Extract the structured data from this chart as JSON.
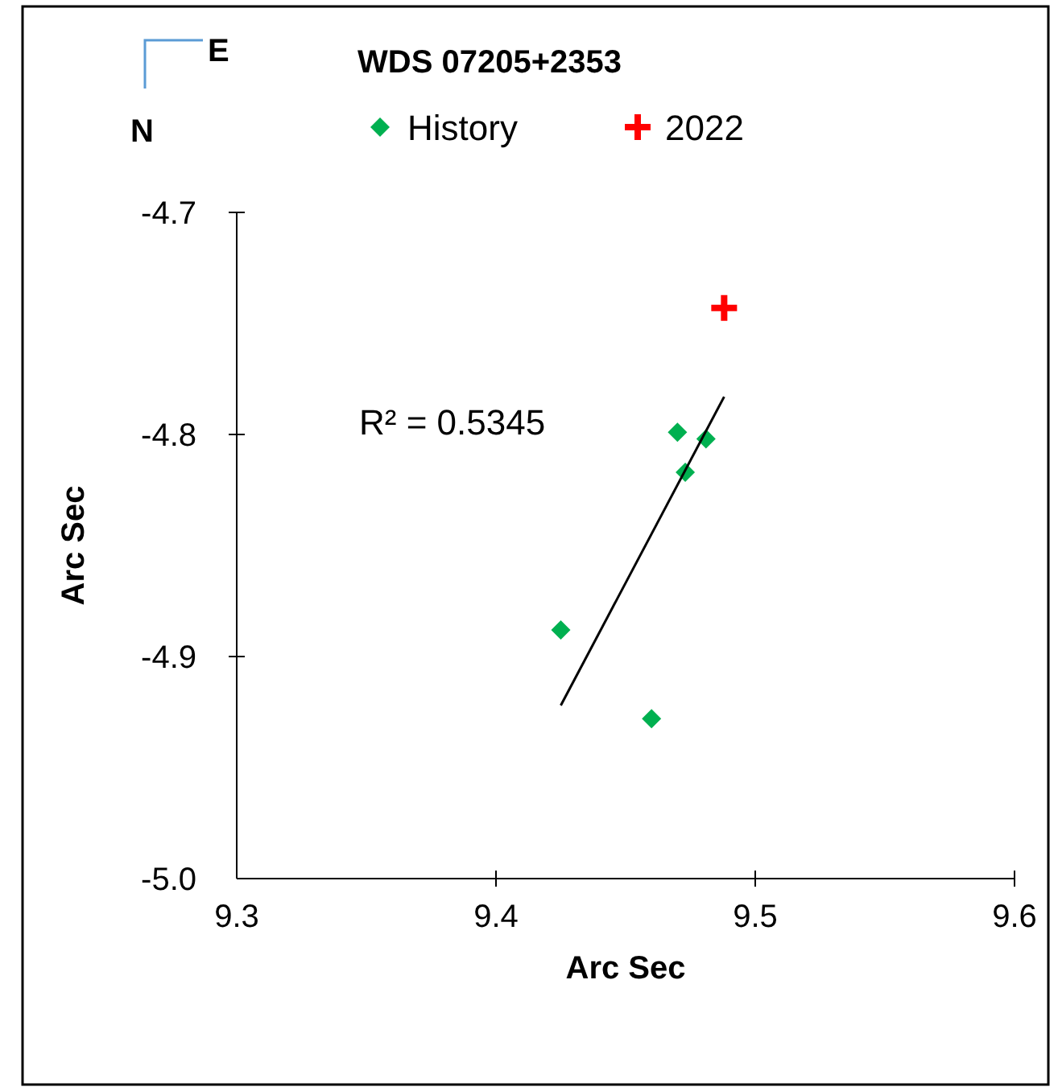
{
  "chart_data": {
    "type": "scatter",
    "title": "WDS 07205+2353",
    "xlabel": "Arc Sec",
    "ylabel": "Arc Sec",
    "xlim": [
      9.3,
      9.6
    ],
    "xticks": [
      9.3,
      9.4,
      9.5,
      9.6
    ],
    "ylim": [
      -5.0,
      -4.7
    ],
    "yticks": [
      {
        "value": -5.0,
        "label": "-5.0"
      },
      -4.9,
      -4.8,
      -4.7
    ],
    "grid": false,
    "legend": "top",
    "series": [
      {
        "name": "History",
        "color": "#00b050",
        "marker": "diamond",
        "x": [
          9.425,
          9.47,
          9.481,
          9.473,
          9.46
        ],
        "values": [
          -4.888,
          -4.799,
          -4.802,
          -4.817,
          -4.928
        ]
      },
      {
        "name": "2022",
        "color": "#ff0000",
        "marker": "cross",
        "x": [
          9.488
        ],
        "values": [
          -4.743
        ]
      },
      {
        "type": "line",
        "color": "#000000",
        "x": [
          9.425,
          9.488
        ],
        "values": [
          -4.922,
          -4.783
        ]
      }
    ],
    "annotations": [
      "R² = 0.5345",
      "E",
      "N"
    ]
  }
}
